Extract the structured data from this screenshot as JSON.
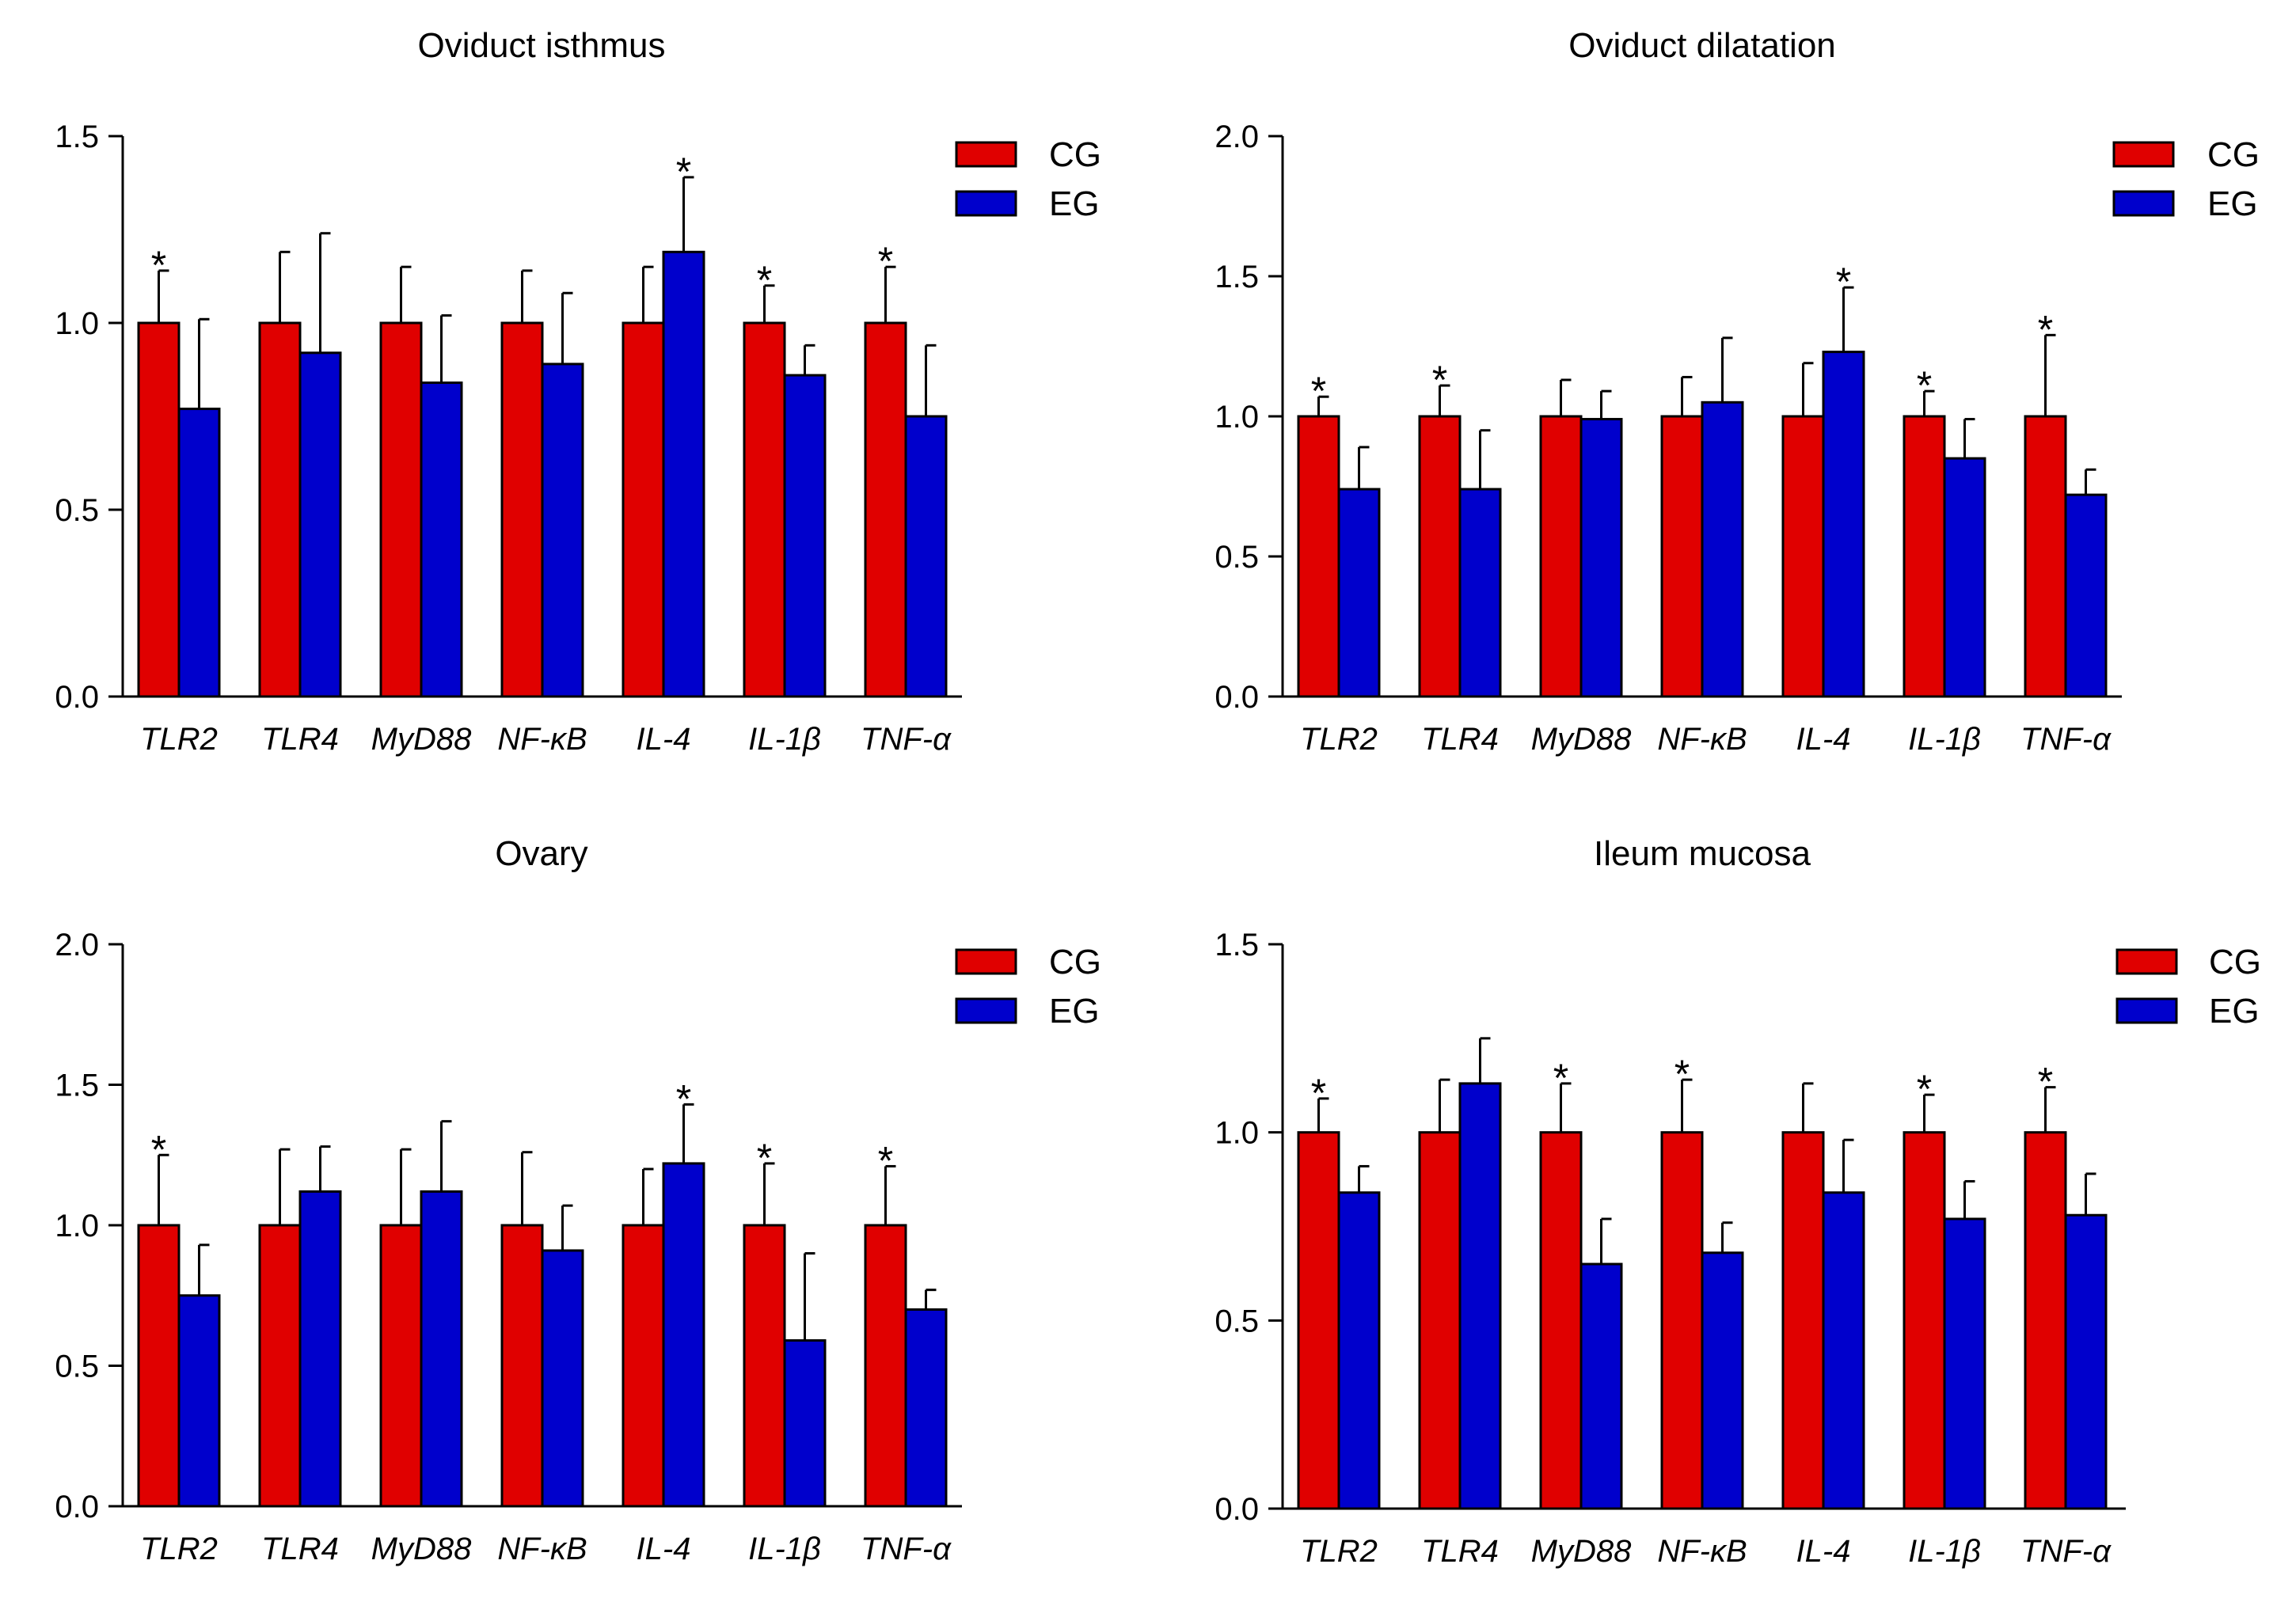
{
  "colors": {
    "CG": "#e00000",
    "EG": "#0000cc",
    "axis": "#000000"
  },
  "chart_data": [
    {
      "type": "bar",
      "title": "Oviduct isthmus",
      "categories": [
        "TLR2",
        "TLR4",
        "MyD88",
        "NF-κB",
        "IL-4",
        "IL-1β",
        "TNF-α"
      ],
      "ylim": [
        0,
        1.5
      ],
      "yticks": [
        0.0,
        0.5,
        1.0,
        1.5
      ],
      "ytick_labels": [
        "0.0",
        "0.5",
        "1.0",
        "1.5"
      ],
      "legend": [
        "CG",
        "EG"
      ],
      "legend_position": "top-right",
      "series": [
        {
          "name": "CG",
          "values": [
            1.0,
            1.0,
            1.0,
            1.0,
            1.0,
            1.0,
            1.0
          ],
          "errors": [
            0.14,
            0.19,
            0.15,
            0.14,
            0.15,
            0.1,
            0.15
          ]
        },
        {
          "name": "EG",
          "values": [
            0.77,
            0.92,
            0.84,
            0.89,
            1.19,
            0.86,
            0.75
          ],
          "errors": [
            0.24,
            0.32,
            0.18,
            0.19,
            0.2,
            0.08,
            0.19
          ]
        }
      ],
      "significance": [
        "*",
        "",
        "",
        "",
        "*",
        "*",
        "*"
      ],
      "significance_on": [
        "CG",
        "",
        "",
        "",
        "EG",
        "CG",
        "CG"
      ]
    },
    {
      "type": "bar",
      "title": "Oviduct dilatation",
      "categories": [
        "TLR2",
        "TLR4",
        "MyD88",
        "NF-κB",
        "IL-4",
        "IL-1β",
        "TNF-α"
      ],
      "ylim": [
        0,
        2.0
      ],
      "yticks": [
        0.0,
        0.5,
        1.0,
        1.5,
        2.0
      ],
      "ytick_labels": [
        "0.0",
        "0.5",
        "1.0",
        "1.5",
        "2.0"
      ],
      "legend": [
        "CG",
        "EG"
      ],
      "legend_position": "top-right",
      "series": [
        {
          "name": "CG",
          "values": [
            1.0,
            1.0,
            1.0,
            1.0,
            1.0,
            1.0,
            1.0
          ],
          "errors": [
            0.07,
            0.11,
            0.13,
            0.14,
            0.19,
            0.09,
            0.29
          ]
        },
        {
          "name": "EG",
          "values": [
            0.74,
            0.74,
            0.99,
            1.05,
            1.23,
            0.85,
            0.72
          ],
          "errors": [
            0.15,
            0.21,
            0.1,
            0.23,
            0.23,
            0.14,
            0.09
          ]
        }
      ],
      "significance": [
        "*",
        "*",
        "",
        "",
        "*",
        "*",
        "*"
      ],
      "significance_on": [
        "CG",
        "CG",
        "",
        "",
        "EG",
        "CG",
        "CG"
      ]
    },
    {
      "type": "bar",
      "title": "Ovary",
      "categories": [
        "TLR2",
        "TLR4",
        "MyD88",
        "NF-κB",
        "IL-4",
        "IL-1β",
        "TNF-α"
      ],
      "ylim": [
        0,
        2.0
      ],
      "yticks": [
        0.0,
        0.5,
        1.0,
        1.5,
        2.0
      ],
      "ytick_labels": [
        "0.0",
        "0.5",
        "1.0",
        "1.5",
        "2.0"
      ],
      "legend": [
        "CG",
        "EG"
      ],
      "legend_position": "top-right",
      "series": [
        {
          "name": "CG",
          "values": [
            1.0,
            1.0,
            1.0,
            1.0,
            1.0,
            1.0,
            1.0
          ],
          "errors": [
            0.25,
            0.27,
            0.27,
            0.26,
            0.2,
            0.22,
            0.21
          ]
        },
        {
          "name": "EG",
          "values": [
            0.75,
            1.12,
            1.12,
            0.91,
            1.22,
            0.59,
            0.7
          ],
          "errors": [
            0.18,
            0.16,
            0.25,
            0.16,
            0.21,
            0.31,
            0.07
          ]
        }
      ],
      "significance": [
        "*",
        "",
        "",
        "",
        "*",
        "*",
        "*"
      ],
      "significance_on": [
        "CG",
        "",
        "",
        "",
        "EG",
        "CG",
        "CG"
      ]
    },
    {
      "type": "bar",
      "title": "Ileum mucosa",
      "categories": [
        "TLR2",
        "TLR4",
        "MyD88",
        "NF-κB",
        "IL-4",
        "IL-1β",
        "TNF-α"
      ],
      "ylim": [
        0,
        1.5
      ],
      "yticks": [
        0.0,
        0.5,
        1.0,
        1.5
      ],
      "ytick_labels": [
        "0.0",
        "0.5",
        "1.0",
        "1.5"
      ],
      "legend": [
        "CG",
        "EG"
      ],
      "legend_position": "top-right",
      "series": [
        {
          "name": "CG",
          "values": [
            1.0,
            1.0,
            1.0,
            1.0,
            1.0,
            1.0,
            1.0
          ],
          "errors": [
            0.09,
            0.14,
            0.13,
            0.14,
            0.13,
            0.1,
            0.12
          ]
        },
        {
          "name": "EG",
          "values": [
            0.84,
            1.13,
            0.65,
            0.68,
            0.84,
            0.77,
            0.78
          ],
          "errors": [
            0.07,
            0.12,
            0.12,
            0.08,
            0.14,
            0.1,
            0.11
          ]
        }
      ],
      "significance": [
        "*",
        "",
        "*",
        "*",
        "",
        "*",
        "*"
      ],
      "significance_on": [
        "CG",
        "",
        "CG",
        "CG",
        "",
        "CG",
        "CG"
      ]
    }
  ]
}
